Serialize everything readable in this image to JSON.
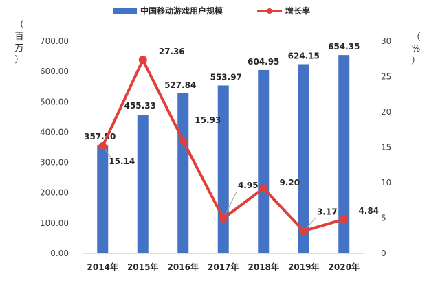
{
  "chart_data": {
    "type": "bar+line",
    "categories": [
      "2014年",
      "2015年",
      "2016年",
      "2017年",
      "2018年",
      "2019年",
      "2020年"
    ],
    "series": [
      {
        "name": "中国移动游戏用户规模",
        "type": "bar",
        "axis": "left",
        "color": "#4472C4",
        "values": [
          357.5,
          455.33,
          527.84,
          553.97,
          604.95,
          624.15,
          654.35
        ],
        "labels": [
          "357.50",
          "455.33",
          "527.84",
          "553.97",
          "604.95",
          "624.15",
          "654.35"
        ]
      },
      {
        "name": "增长率",
        "type": "line",
        "axis": "right",
        "color": "#E0403A",
        "values": [
          15.14,
          27.36,
          15.93,
          4.95,
          9.2,
          3.17,
          4.84
        ],
        "labels": [
          "15.14",
          "27.36",
          "15.93",
          "4.95",
          "9.20",
          "3.17",
          "4.84"
        ]
      }
    ],
    "left_axis": {
      "label_chars": [
        "（",
        "百",
        "万",
        "）"
      ],
      "ylim": [
        0,
        700
      ],
      "ticks": [
        "0.00",
        "100.00",
        "200.00",
        "300.00",
        "400.00",
        "500.00",
        "600.00",
        "700.00"
      ]
    },
    "right_axis": {
      "label_chars": [
        "（",
        "%",
        "）"
      ],
      "ylim": [
        0,
        30
      ],
      "ticks": [
        "0",
        "5",
        "10",
        "15",
        "20",
        "25",
        "30"
      ]
    },
    "legend_position": "top-center",
    "grid": false
  }
}
